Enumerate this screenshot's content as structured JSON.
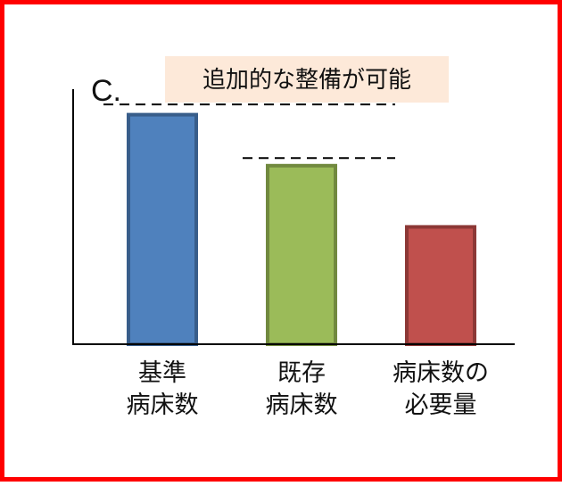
{
  "chart_data": {
    "type": "bar",
    "panel_label": "C.",
    "annotation": "追加的な整備が可能",
    "categories": [
      [
        "基準",
        "病床数"
      ],
      [
        "既存",
        "病床数"
      ],
      [
        "病床数の",
        "必要量"
      ]
    ],
    "values": [
      0.9,
      0.7,
      0.46
    ],
    "colors": {
      "fill": [
        "#4f81bd",
        "#9bbb59",
        "#c0504d"
      ],
      "stroke": [
        "#385d8a",
        "#71893f",
        "#8c3836"
      ],
      "callout_background": "#fde9d9",
      "frame": "#ff0000"
    },
    "reference_lines": [
      {
        "value": 0.94,
        "from_category": 0
      },
      {
        "value": 0.73,
        "from_category": 1
      }
    ],
    "grid": false,
    "legend": "none"
  }
}
